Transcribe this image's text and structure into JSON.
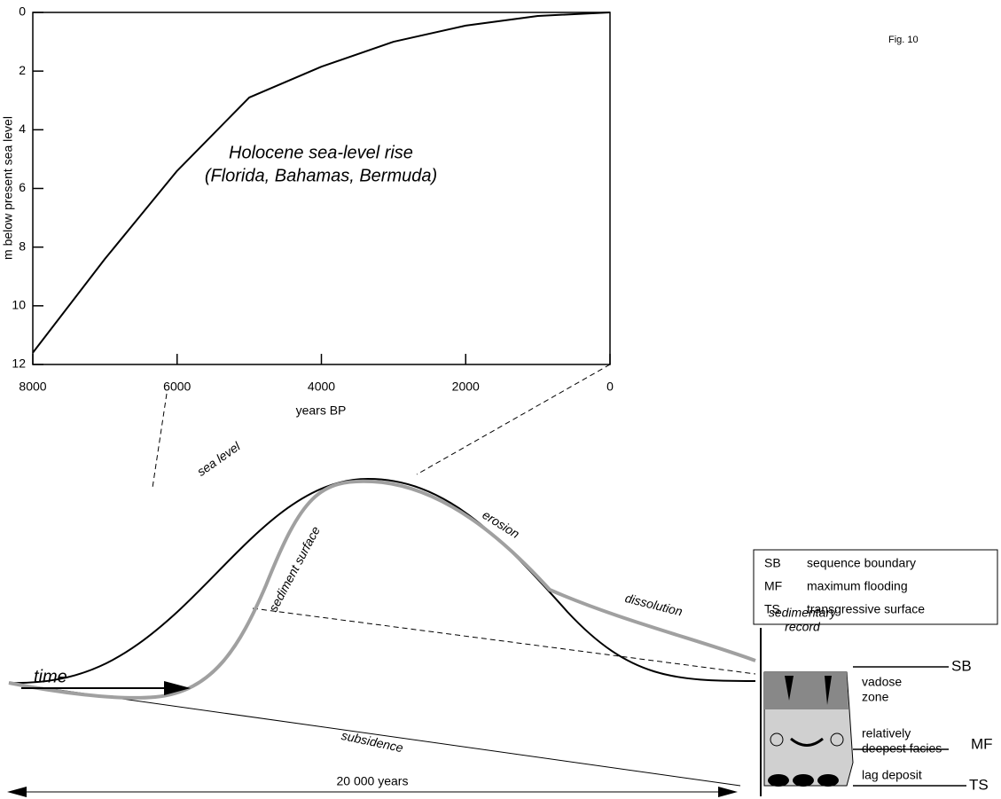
{
  "figure_label": "Fig. 10",
  "chart_data": {
    "type": "line",
    "annotation": [
      "Holocene sea-level rise",
      "(Florida, Bahamas, Bermuda)"
    ],
    "x_label": "years BP",
    "y_label": "m below present sea level",
    "x": [
      8000,
      7000,
      6000,
      5000,
      4000,
      3000,
      2000,
      1000,
      0
    ],
    "series": [
      {
        "color": "#000000",
        "values": [
          11.6,
          8.4,
          5.4,
          2.9,
          1.85,
          1.0,
          0.45,
          0.12,
          0
        ]
      }
    ],
    "xlim": [
      8000,
      0
    ],
    "xticks": [
      8000,
      6000,
      4000,
      2000,
      0
    ],
    "ylim": [
      12,
      0
    ],
    "yticks": [
      0,
      2,
      4,
      6,
      8,
      10,
      12
    ]
  },
  "diagram": {
    "sea_level": "sea level",
    "sediment_surface": "sediment surface",
    "erosion": "erosion",
    "dissolution": "dissolution",
    "record": [
      "sedimentary",
      "record"
    ],
    "subsidence": "subsidence",
    "time": "time",
    "duration": "20 000 years",
    "zones": [
      [
        "vadose",
        "zone"
      ],
      [
        "relatively",
        "deepest facies"
      ],
      [
        "lag deposit"
      ]
    ],
    "surfaces": [
      "SB",
      "MF",
      "TS"
    ],
    "legend": [
      [
        "SB",
        "sequence boundary"
      ],
      [
        "MF",
        "maximum flooding"
      ],
      [
        "TS",
        "transgressive surface"
      ]
    ]
  }
}
